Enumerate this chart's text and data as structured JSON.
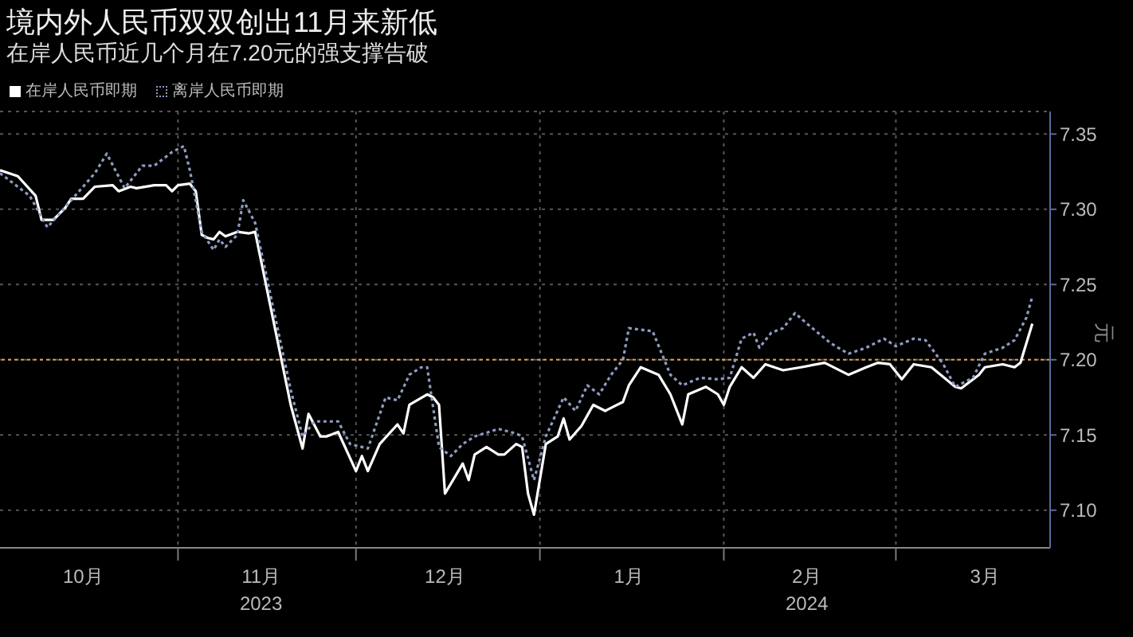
{
  "chart_data": {
    "type": "line",
    "title": "境内外人民币双双创出11月来新低",
    "subtitle": "在岸人民币近几个月在7.20元的强支撑告破",
    "ylabel": "元",
    "legend": "top left",
    "grid": true,
    "marker": "none",
    "xlim": [
      "2023-10-02",
      "2024-03-27"
    ],
    "xticks": [
      {
        "value": "2023-10-16",
        "label": "10月"
      },
      {
        "value": "2023-11-01",
        "label": null
      },
      {
        "value": "2023-11-15",
        "label": "11月\n2023"
      },
      {
        "value": "2023-12-01",
        "label": null
      },
      {
        "value": "2023-12-16",
        "label": "12月"
      },
      {
        "value": "2024-01-01",
        "label": null
      },
      {
        "value": "2024-01-16",
        "label": "1月"
      },
      {
        "value": "2024-02-01",
        "label": null
      },
      {
        "value": "2024-02-15",
        "label": "2月\n2024"
      },
      {
        "value": "2024-03-01",
        "label": null
      },
      {
        "value": "2024-03-16",
        "label": "3月"
      }
    ],
    "ylim": [
      7.075,
      7.365
    ],
    "yticks": [
      {
        "value": 7.1,
        "label": "7.10"
      },
      7.15,
      {
        "value": 7.2,
        "label": "7.20"
      },
      7.25,
      {
        "value": 7.3,
        "label": "7.30"
      },
      7.35
    ],
    "ref_lines": [
      {
        "axis": "y",
        "value": 7.2,
        "color": "#e0a050",
        "line_style": "dotted"
      }
    ],
    "series": [
      {
        "name": "在岸人民币即期",
        "color": "#ffffff",
        "line_style": "solid",
        "x": [
          "2023-10-02",
          "2023-10-05",
          "2023-10-08",
          "2023-10-09",
          "2023-10-11",
          "2023-10-13",
          "2023-10-14",
          "2023-10-16",
          "2023-10-18",
          "2023-10-21",
          "2023-10-22",
          "2023-10-24",
          "2023-10-25",
          "2023-10-28",
          "2023-10-30",
          "2023-10-31",
          "2023-11-01",
          "2023-11-03",
          "2023-11-04",
          "2023-11-05",
          "2023-11-06",
          "2023-11-07",
          "2023-11-08",
          "2023-11-09",
          "2023-11-11",
          "2023-11-13",
          "2023-11-14",
          "2023-11-20",
          "2023-11-22",
          "2023-11-23",
          "2023-11-25",
          "2023-11-26",
          "2023-11-28",
          "2023-12-01",
          "2023-12-02",
          "2023-12-03",
          "2023-12-05",
          "2023-12-08",
          "2023-12-09",
          "2023-12-10",
          "2023-12-13",
          "2023-12-14",
          "2023-12-15",
          "2023-12-16",
          "2023-12-19",
          "2023-12-20",
          "2023-12-21",
          "2023-12-23",
          "2023-12-25",
          "2023-12-26",
          "2023-12-28",
          "2023-12-29",
          "2023-12-30",
          "2023-12-31",
          "2024-01-02",
          "2024-01-04",
          "2024-01-05",
          "2024-01-06",
          "2024-01-08",
          "2024-01-10",
          "2024-01-12",
          "2024-01-15",
          "2024-01-16",
          "2024-01-18",
          "2024-01-21",
          "2024-01-23",
          "2024-01-25",
          "2024-01-26",
          "2024-01-29",
          "2024-01-31",
          "2024-02-01",
          "2024-02-02",
          "2024-02-04",
          "2024-02-06",
          "2024-02-08",
          "2024-02-11",
          "2024-02-14",
          "2024-02-18",
          "2024-02-22",
          "2024-02-25",
          "2024-02-27",
          "2024-02-29",
          "2024-03-02",
          "2024-03-04",
          "2024-03-07",
          "2024-03-11",
          "2024-03-12",
          "2024-03-15",
          "2024-03-16",
          "2024-03-19",
          "2024-03-21",
          "2024-03-22",
          "2024-03-23",
          "2024-03-24"
        ],
        "values": [
          7.326,
          7.322,
          7.309,
          7.293,
          7.293,
          7.301,
          7.307,
          7.307,
          7.315,
          7.316,
          7.312,
          7.315,
          7.314,
          7.316,
          7.316,
          7.312,
          7.316,
          7.317,
          7.312,
          7.283,
          7.281,
          7.28,
          7.285,
          7.282,
          7.285,
          7.284,
          7.285,
          7.17,
          7.141,
          7.164,
          7.149,
          7.149,
          7.152,
          7.126,
          7.136,
          7.126,
          7.144,
          7.157,
          7.151,
          7.17,
          7.177,
          7.175,
          7.17,
          7.111,
          7.131,
          7.12,
          7.137,
          7.142,
          7.137,
          7.137,
          7.144,
          7.142,
          7.111,
          7.097,
          7.144,
          7.149,
          7.161,
          7.147,
          7.156,
          7.17,
          7.166,
          7.172,
          7.183,
          7.195,
          7.19,
          7.177,
          7.157,
          7.177,
          7.182,
          7.177,
          7.17,
          7.182,
          7.195,
          7.188,
          7.197,
          7.193,
          7.195,
          7.198,
          7.19,
          7.195,
          7.198,
          7.197,
          7.187,
          7.197,
          7.195,
          7.182,
          7.181,
          7.19,
          7.195,
          7.197,
          7.195,
          7.198,
          7.211,
          7.224
        ]
      },
      {
        "name": "离岸人民币即期",
        "color": "#8e9cc0",
        "line_style": "dotted",
        "x": [
          "2023-10-02",
          "2023-10-07",
          "2023-10-10",
          "2023-10-14",
          "2023-10-18",
          "2023-10-20",
          "2023-10-23",
          "2023-10-26",
          "2023-10-28",
          "2023-10-31",
          "2023-11-02",
          "2023-11-03",
          "2023-11-05",
          "2023-11-07",
          "2023-11-08",
          "2023-11-09",
          "2023-11-11",
          "2023-11-12",
          "2023-11-14",
          "2023-11-20",
          "2023-11-22",
          "2023-11-24",
          "2023-11-28",
          "2023-11-30",
          "2023-12-03",
          "2023-12-06",
          "2023-12-08",
          "2023-12-10",
          "2023-12-12",
          "2023-12-13",
          "2023-12-15",
          "2023-12-17",
          "2023-12-19",
          "2023-12-21",
          "2023-12-25",
          "2023-12-28",
          "2023-12-29",
          "2023-12-31",
          "2024-01-02",
          "2024-01-05",
          "2024-01-07",
          "2024-01-09",
          "2024-01-11",
          "2024-01-13",
          "2024-01-15",
          "2024-01-16",
          "2024-01-20",
          "2024-01-23",
          "2024-01-25",
          "2024-01-28",
          "2024-01-31",
          "2024-02-02",
          "2024-02-04",
          "2024-02-06",
          "2024-02-07",
          "2024-02-09",
          "2024-02-11",
          "2024-02-13",
          "2024-02-15",
          "2024-02-19",
          "2024-02-22",
          "2024-02-25",
          "2024-02-28",
          "2024-03-01",
          "2024-03-04",
          "2024-03-06",
          "2024-03-09",
          "2024-03-11",
          "2024-03-14",
          "2024-03-16",
          "2024-03-19",
          "2024-03-21",
          "2024-03-23",
          "2024-03-24"
        ],
        "values": [
          7.324,
          7.309,
          7.288,
          7.306,
          7.324,
          7.337,
          7.314,
          7.329,
          7.329,
          7.338,
          7.342,
          7.326,
          7.285,
          7.273,
          7.28,
          7.275,
          7.283,
          7.306,
          7.291,
          7.18,
          7.149,
          7.159,
          7.159,
          7.144,
          7.141,
          7.175,
          7.173,
          7.19,
          7.195,
          7.195,
          7.142,
          7.136,
          7.144,
          7.149,
          7.154,
          7.151,
          7.149,
          7.12,
          7.149,
          7.175,
          7.166,
          7.183,
          7.177,
          7.19,
          7.2,
          7.221,
          7.219,
          7.19,
          7.183,
          7.188,
          7.187,
          7.188,
          7.214,
          7.218,
          7.208,
          7.218,
          7.221,
          7.231,
          7.224,
          7.211,
          7.204,
          7.208,
          7.214,
          7.209,
          7.214,
          7.213,
          7.197,
          7.182,
          7.188,
          7.204,
          7.208,
          7.213,
          7.228,
          7.242
        ]
      }
    ]
  }
}
